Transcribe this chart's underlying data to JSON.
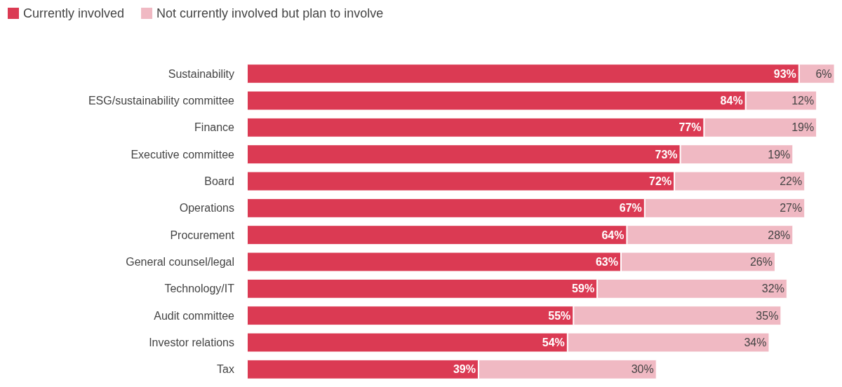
{
  "chart_data": {
    "type": "bar",
    "orientation": "horizontal",
    "stacked": true,
    "legend": "top left",
    "tick_labels": "y",
    "categories": [
      "Sustainability",
      "ESG/sustainability committee",
      "Finance",
      "Executive committee",
      "Board",
      "Operations",
      "Procurement",
      "General counsel/legal",
      "Technology/IT",
      "Audit committee",
      "Investor relations",
      "Tax"
    ],
    "series": [
      {
        "name": "Currently involved",
        "color": "#db3a53",
        "values": [
          93,
          84,
          77,
          73,
          72,
          67,
          64,
          63,
          59,
          55,
          54,
          39
        ],
        "value_labels": [
          "93%",
          "84%",
          "77%",
          "73%",
          "72%",
          "67%",
          "64%",
          "63%",
          "59%",
          "55%",
          "54%",
          "39%"
        ]
      },
      {
        "name": "Not currently involved but plan to involve",
        "color": "#f0b9c3",
        "values": [
          6,
          12,
          19,
          19,
          22,
          27,
          28,
          26,
          32,
          35,
          34,
          30
        ],
        "value_labels": [
          "6%",
          "12%",
          "19%",
          "19%",
          "22%",
          "27%",
          "28%",
          "26%",
          "32%",
          "35%",
          "34%",
          "30%"
        ]
      }
    ]
  }
}
